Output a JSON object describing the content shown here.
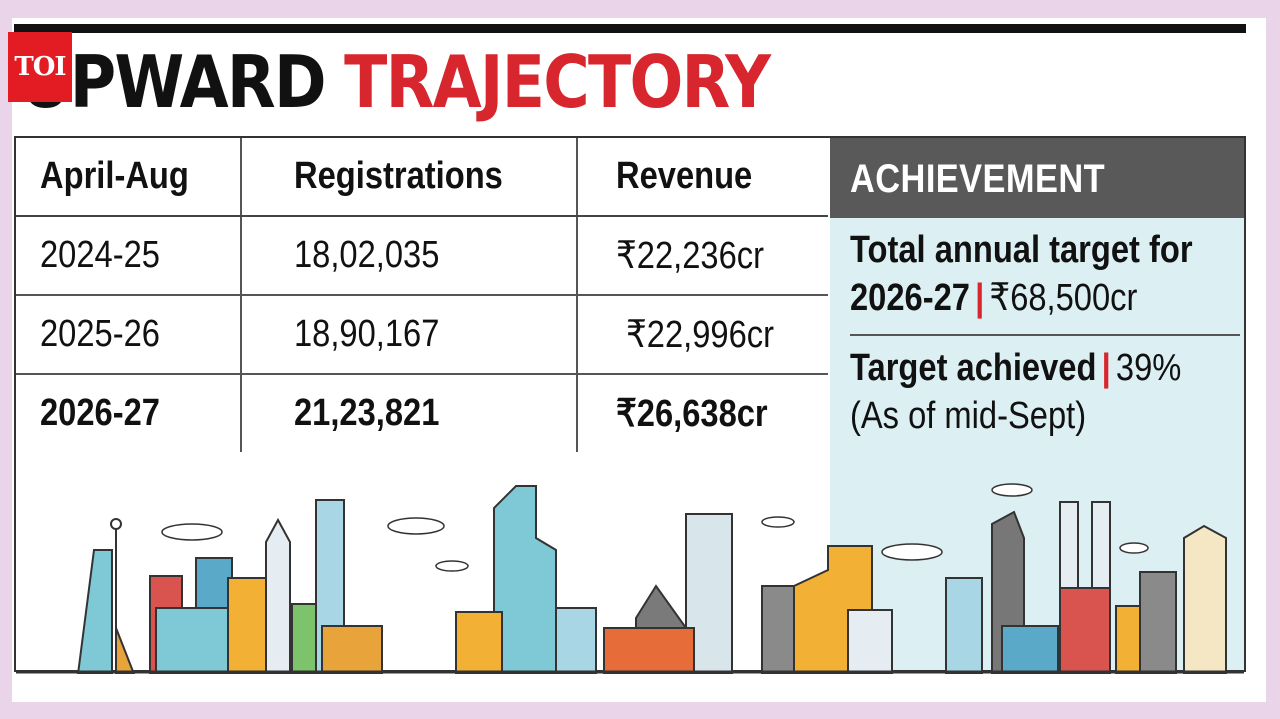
{
  "logo": "TOI",
  "headline": {
    "word1": "UPWARD",
    "word2": "TRAJECTORY"
  },
  "table": {
    "headers": [
      "April-Aug",
      "Registrations",
      "Revenue"
    ],
    "rows": [
      [
        "2024-25",
        "18,02,035",
        "₹22,236cr"
      ],
      [
        "2025-26",
        "18,90,167",
        "₹22,996cr"
      ],
      [
        "2026-27",
        "21,23,821",
        "₹26,638cr"
      ]
    ]
  },
  "achievement": {
    "title": "ACHIEVEMENT",
    "target_line1": "Total annual target for",
    "target_year": "2026-27",
    "separator": "|",
    "target_value": "₹68,500cr",
    "achieved_label": "Target achieved",
    "achieved_value": "39%",
    "note": "(As of mid-Sept)"
  },
  "colors": {
    "accent": "#d7262d",
    "panel": "#dceff2",
    "panel_header": "#595959",
    "background": "#e9d4e9"
  }
}
